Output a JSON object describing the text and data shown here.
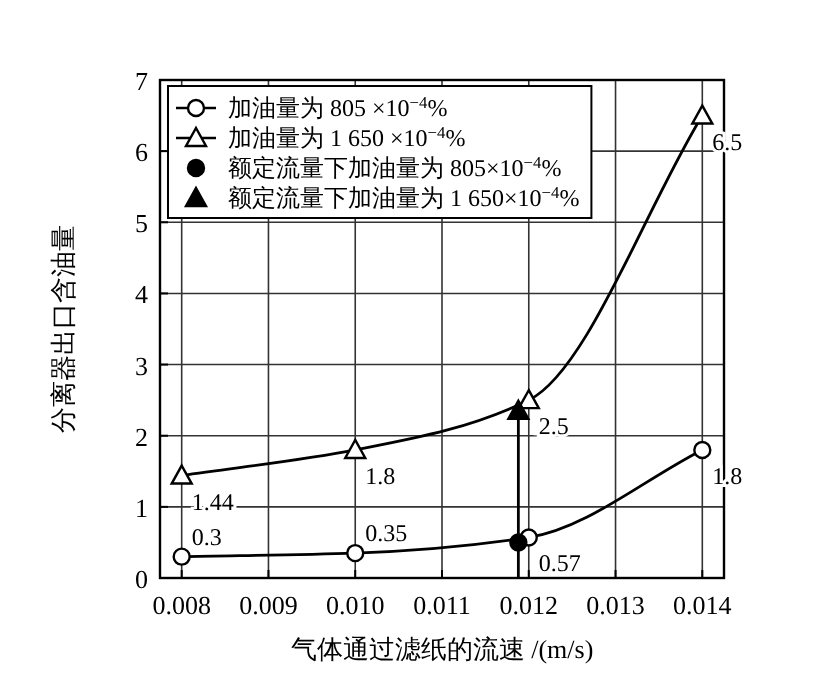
{
  "chart_data": {
    "type": "line",
    "xlabel": "气体通过滤纸的流速 /(m/s)",
    "ylabel": "分离器出口含油量",
    "xlim": [
      0.00775,
      0.01425
    ],
    "xticks": [
      {
        "value": 0.008,
        "label": "0.008"
      },
      {
        "value": 0.009,
        "label": "0.009"
      },
      {
        "value": 0.01,
        "label": "0.010"
      },
      {
        "value": 0.011,
        "label": "0.011"
      },
      {
        "value": 0.012,
        "label": "0.012"
      },
      {
        "value": 0.013,
        "label": "0.013"
      },
      {
        "value": 0.014,
        "label": "0.014"
      }
    ],
    "ylim": [
      0,
      7
    ],
    "yticks": [
      0,
      1,
      2,
      3,
      4,
      5,
      6,
      7
    ],
    "grid": true,
    "legend": "top left",
    "series": [
      {
        "name": "加油量为 805 ×10$^{−4}$%",
        "marker": "circle",
        "color": "#000000",
        "x": [
          0.008,
          0.01,
          0.012,
          0.014
        ],
        "values": [
          0.3,
          0.35,
          0.57,
          1.8
        ],
        "value_labels": [
          "0.3",
          "0.35",
          "0.57",
          "1.8"
        ]
      },
      {
        "name": "加油量为 1 650 ×10$^{−4}$%",
        "marker": "triangle",
        "color": "#000000",
        "x": [
          0.008,
          0.01,
          0.012,
          0.014
        ],
        "values": [
          1.44,
          1.8,
          2.5,
          6.5
        ],
        "value_labels": [
          "1.44",
          "1.8",
          "2.5",
          "6.5"
        ]
      },
      {
        "name": "额定流量下加油量为 805×10$^{−4}$%",
        "type": "scatter",
        "marker": "circle",
        "color": "#000000",
        "x": [
          0.01188
        ],
        "values": [
          0.5
        ]
      },
      {
        "name": "额定流量下加油量为 1 650×10$^{−4}$%",
        "type": "scatter",
        "marker": "triangle",
        "color": "#000000",
        "x": [
          0.01188
        ],
        "values": [
          2.35
        ]
      }
    ]
  }
}
